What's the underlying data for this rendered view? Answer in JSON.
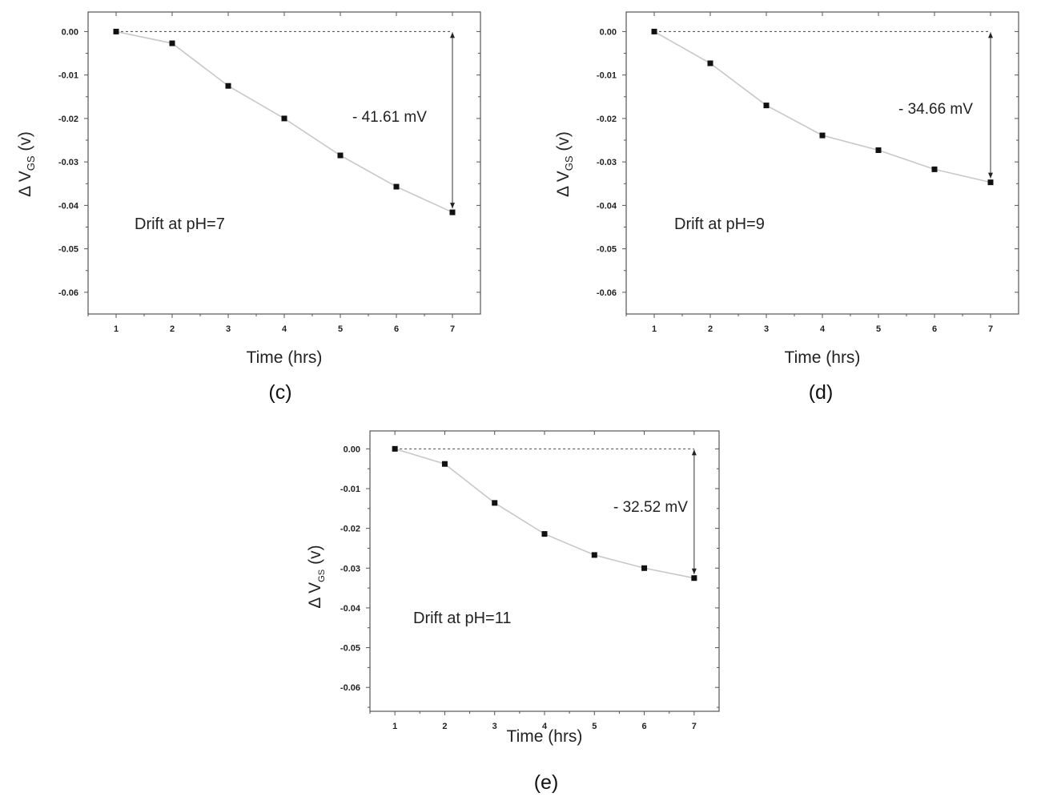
{
  "chart_data": [
    {
      "type": "line",
      "panel_label": "(c)",
      "annotation": "Drift at pH=7",
      "delta_label": "- 41.61 mV",
      "xlabel": "Time (hrs)",
      "ylabel_main": "Δ V",
      "ylabel_sub": "GS",
      "ylabel_unit": " (v)",
      "x": [
        1,
        2,
        3,
        4,
        5,
        6,
        7
      ],
      "y": [
        0.0,
        -0.0027,
        -0.0125,
        -0.02,
        -0.0285,
        -0.0357,
        -0.0416
      ],
      "xlim": [
        0.5,
        7.5
      ],
      "ylim": [
        -0.065,
        0.0045
      ],
      "xticks": [
        "1",
        "2",
        "3",
        "4",
        "5",
        "6",
        "7"
      ],
      "yticks": [
        "0.00",
        "-0.01",
        "-0.02",
        "-0.03",
        "-0.04",
        "-0.05",
        "-0.06"
      ],
      "ytick_values": [
        0,
        -0.01,
        -0.02,
        -0.03,
        -0.04,
        -0.05,
        -0.06
      ],
      "reference_line_y": 0,
      "colors": {
        "line": "#c8c8c8",
        "marker": "#111111",
        "frame": "#555555"
      }
    },
    {
      "type": "line",
      "panel_label": "(d)",
      "annotation": "Drift at pH=9",
      "delta_label": "- 34.66 mV",
      "xlabel": "Time (hrs)",
      "ylabel_main": "Δ V",
      "ylabel_sub": "GS",
      "ylabel_unit": " (v)",
      "x": [
        1,
        2,
        3,
        4,
        5,
        6,
        7
      ],
      "y": [
        0.0,
        -0.0073,
        -0.017,
        -0.0239,
        -0.0273,
        -0.0317,
        -0.0347
      ],
      "xlim": [
        0.5,
        7.5
      ],
      "ylim": [
        -0.065,
        0.0045
      ],
      "xticks": [
        "1",
        "2",
        "3",
        "4",
        "5",
        "6",
        "7"
      ],
      "yticks": [
        "0.00",
        "-0.01",
        "-0.02",
        "-0.03",
        "-0.04",
        "-0.05",
        "-0.06"
      ],
      "ytick_values": [
        0,
        -0.01,
        -0.02,
        -0.03,
        -0.04,
        -0.05,
        -0.06
      ],
      "reference_line_y": 0,
      "colors": {
        "line": "#c8c8c8",
        "marker": "#111111",
        "frame": "#555555"
      }
    },
    {
      "type": "line",
      "panel_label": "(e)",
      "annotation": "Drift at pH=11",
      "delta_label": "- 32.52 mV",
      "xlabel": "Time (hrs)",
      "ylabel_main": "Δ V",
      "ylabel_sub": "GS",
      "ylabel_unit": " (v)",
      "x": [
        1,
        2,
        3,
        4,
        5,
        6,
        7
      ],
      "y": [
        0.0,
        -0.0038,
        -0.0136,
        -0.0214,
        -0.0267,
        -0.03,
        -0.0325
      ],
      "xlim": [
        0.5,
        7.5
      ],
      "ylim": [
        -0.066,
        0.0045
      ],
      "xticks": [
        "1",
        "2",
        "3",
        "4",
        "5",
        "6",
        "7"
      ],
      "yticks": [
        "0.00",
        "-0.01",
        "-0.02",
        "-0.03",
        "-0.04",
        "-0.05",
        "-0.06"
      ],
      "ytick_values": [
        0,
        -0.01,
        -0.02,
        -0.03,
        -0.04,
        -0.05,
        -0.06
      ],
      "reference_line_y": 0,
      "colors": {
        "line": "#c8c8c8",
        "marker": "#111111",
        "frame": "#555555"
      }
    }
  ]
}
